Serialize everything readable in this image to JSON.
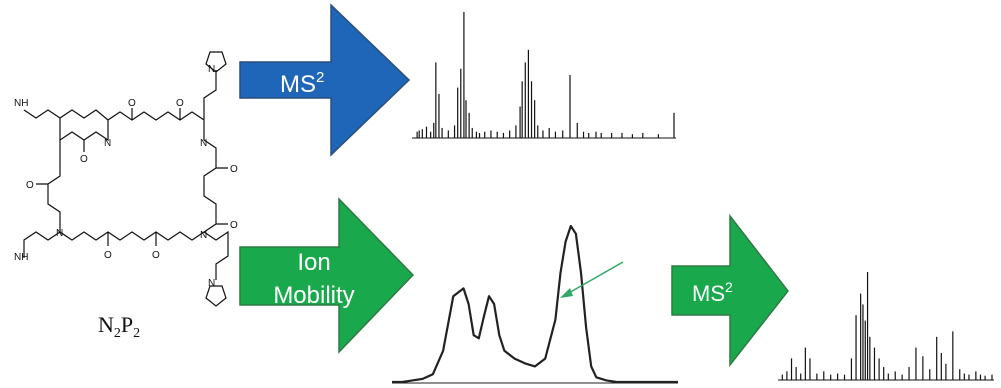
{
  "colors": {
    "blue_arrow": "#1f66b8",
    "blue_arrow_border": "#2a4f7c",
    "green_arrow": "#19a84b",
    "green_arrow_border": "#2f7a45",
    "trace": "#222222",
    "spectrum": "#111111",
    "pointer": "#2fa865"
  },
  "molecule": {
    "label_main": "N",
    "label_sub1": "2",
    "label_mid": "P",
    "label_sub2": "2",
    "atoms": {
      "N": "N",
      "O": "O",
      "NH": "NH"
    }
  },
  "arrows": {
    "top": {
      "text": "MS",
      "sup": "2"
    },
    "middle": {
      "line1": "Ion",
      "line2": "Mobility"
    },
    "right": {
      "text": "MS",
      "sup": "2"
    }
  },
  "chart_data": [
    {
      "type": "bar",
      "xlabel": "",
      "ylabel": "",
      "x": [
        3,
        5,
        8,
        12,
        16,
        19,
        21,
        24,
        27,
        33,
        39,
        42,
        45,
        48,
        50,
        53,
        56,
        60,
        63,
        68,
        74,
        80,
        86,
        92,
        98,
        102,
        104,
        107,
        110,
        113,
        116,
        119,
        124,
        130,
        136,
        143,
        150,
        157,
        163,
        168,
        175,
        180,
        190,
        200,
        210,
        220,
        235,
        250
      ],
      "values": [
        0.05,
        0.06,
        0.07,
        0.09,
        0.05,
        0.12,
        0.6,
        0.35,
        0.08,
        0.06,
        0.1,
        0.4,
        0.55,
        1.0,
        0.3,
        0.2,
        0.08,
        0.05,
        0.04,
        0.05,
        0.06,
        0.05,
        0.04,
        0.06,
        0.1,
        0.25,
        0.45,
        0.6,
        0.7,
        0.45,
        0.3,
        0.1,
        0.06,
        0.08,
        0.05,
        0.06,
        0.5,
        0.12,
        0.05,
        0.04,
        0.05,
        0.04,
        0.04,
        0.04,
        0.03,
        0.04,
        0.03,
        0.2
      ]
    },
    {
      "type": "line",
      "xlabel": "",
      "ylabel": "",
      "x": [
        0,
        10,
        20,
        30,
        40,
        50,
        60,
        70,
        75,
        80,
        85,
        90,
        95,
        100,
        105,
        110,
        120,
        130,
        140,
        150,
        160,
        165,
        170,
        175,
        180,
        185,
        190,
        195,
        200,
        210,
        220,
        240,
        260,
        280
      ],
      "values": [
        0.0,
        0.0,
        0.01,
        0.02,
        0.05,
        0.2,
        0.55,
        0.6,
        0.5,
        0.3,
        0.28,
        0.42,
        0.55,
        0.5,
        0.3,
        0.2,
        0.15,
        0.12,
        0.1,
        0.15,
        0.4,
        0.7,
        0.9,
        1.0,
        0.95,
        0.7,
        0.35,
        0.1,
        0.03,
        0.01,
        0.0,
        0.0,
        0.0,
        0.0
      ]
    },
    {
      "type": "bar",
      "xlabel": "",
      "ylabel": "",
      "x": [
        2,
        6,
        10,
        14,
        18,
        22,
        26,
        32,
        38,
        44,
        50,
        56,
        62,
        66,
        70,
        72,
        74,
        76,
        78,
        82,
        86,
        90,
        94,
        100,
        106,
        112,
        118,
        124,
        130,
        136,
        140,
        144,
        150,
        156,
        160,
        164,
        170,
        174,
        178,
        184
      ],
      "values": [
        0.05,
        0.08,
        0.2,
        0.12,
        0.06,
        0.3,
        0.2,
        0.06,
        0.08,
        0.05,
        0.06,
        0.05,
        0.2,
        0.6,
        0.8,
        0.7,
        0.55,
        1.0,
        0.4,
        0.3,
        0.2,
        0.12,
        0.06,
        0.08,
        0.05,
        0.12,
        0.3,
        0.22,
        0.1,
        0.4,
        0.25,
        0.15,
        0.45,
        0.1,
        0.06,
        0.05,
        0.08,
        0.05,
        0.04,
        0.05
      ]
    }
  ]
}
